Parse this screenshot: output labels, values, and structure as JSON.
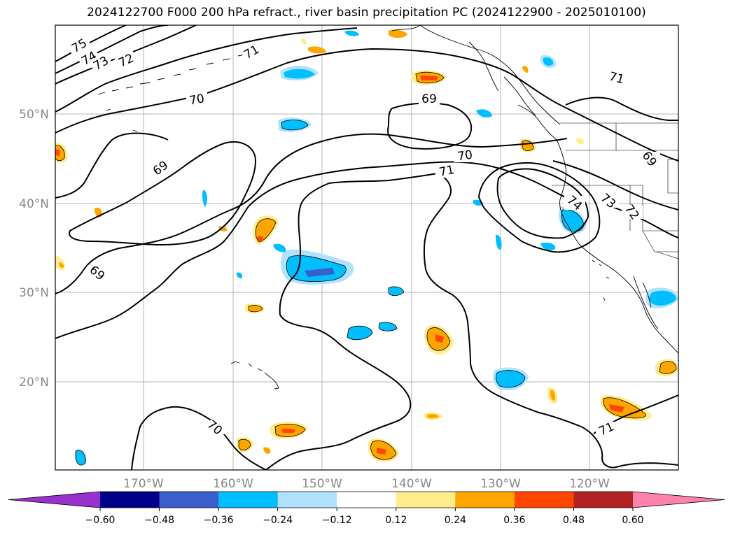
{
  "title": "2024122700 F000 200 hPa refract., river basin precipitation PC (2024122900 - 2025010100)",
  "map": {
    "lat_labels": [
      "50°N",
      "40°N",
      "30°N",
      "20°N"
    ],
    "lon_labels": [
      "170°W",
      "160°W",
      "150°W",
      "140°W",
      "130°W",
      "120°W"
    ],
    "contour_labels": [
      "75",
      "74",
      "73",
      "72",
      "70",
      "71",
      "69",
      "69",
      "70",
      "71",
      "69",
      "69",
      "74",
      "73",
      "72",
      "70",
      "71",
      "71"
    ]
  },
  "colorbar": {
    "ticks": [
      "−0.60",
      "−0.48",
      "−0.36",
      "−0.24",
      "−0.12",
      "0.12",
      "0.24",
      "0.36",
      "0.48",
      "0.60"
    ],
    "colors": [
      "#9932cc",
      "#00008b",
      "#3a5fcd",
      "#00bfff",
      "#b0e2ff",
      "#ffffff",
      "#ffec8b",
      "#ffa500",
      "#ff4500",
      "#b22222",
      "#ff82ab"
    ]
  }
}
